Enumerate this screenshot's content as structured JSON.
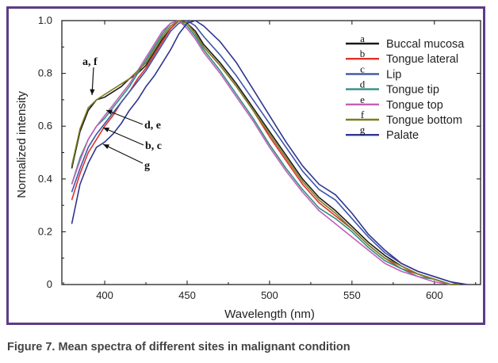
{
  "caption": "Figure 7. Mean spectra of different sites in malignant condition",
  "chart_data": {
    "type": "line",
    "xlabel": "Wavelength (nm)",
    "ylabel": "Normalized intensity",
    "xlim": [
      374,
      628
    ],
    "ylim": [
      0,
      1.0
    ],
    "x_ticks": [
      400,
      450,
      500,
      550,
      600
    ],
    "x_tick_labels": [
      "400",
      "450",
      "500",
      "550",
      "600"
    ],
    "y_ticks": [
      0,
      0.2,
      0.4,
      0.6,
      0.8,
      1.0
    ],
    "y_tick_labels": [
      "0",
      "0.2",
      "0.4",
      "0.6",
      "0.8",
      "1.0"
    ],
    "grid": false,
    "legend_position": "top-right",
    "series": [
      {
        "key": "a",
        "name": "Buccal mucosa",
        "color": "#1a1a1a",
        "points": [
          [
            380,
            0.44
          ],
          [
            385,
            0.58
          ],
          [
            390,
            0.66
          ],
          [
            395,
            0.7
          ],
          [
            400,
            0.71
          ],
          [
            405,
            0.73
          ],
          [
            410,
            0.75
          ],
          [
            415,
            0.78
          ],
          [
            420,
            0.8
          ],
          [
            425,
            0.83
          ],
          [
            430,
            0.88
          ],
          [
            435,
            0.93
          ],
          [
            440,
            0.97
          ],
          [
            445,
            1.0
          ],
          [
            450,
            0.99
          ],
          [
            455,
            0.96
          ],
          [
            460,
            0.91
          ],
          [
            470,
            0.84
          ],
          [
            480,
            0.76
          ],
          [
            490,
            0.67
          ],
          [
            500,
            0.58
          ],
          [
            510,
            0.49
          ],
          [
            520,
            0.4
          ],
          [
            530,
            0.33
          ],
          [
            540,
            0.28
          ],
          [
            550,
            0.22
          ],
          [
            560,
            0.16
          ],
          [
            570,
            0.11
          ],
          [
            580,
            0.07
          ],
          [
            590,
            0.04
          ],
          [
            600,
            0.02
          ],
          [
            610,
            0.0
          ],
          [
            615,
            0.0
          ]
        ]
      },
      {
        "key": "b",
        "name": "Tongue lateral",
        "color": "#e0302a",
        "points": [
          [
            380,
            0.32
          ],
          [
            385,
            0.42
          ],
          [
            390,
            0.5
          ],
          [
            395,
            0.55
          ],
          [
            400,
            0.6
          ],
          [
            405,
            0.64
          ],
          [
            410,
            0.69
          ],
          [
            415,
            0.73
          ],
          [
            420,
            0.78
          ],
          [
            425,
            0.82
          ],
          [
            430,
            0.87
          ],
          [
            435,
            0.92
          ],
          [
            440,
            0.97
          ],
          [
            445,
            1.0
          ],
          [
            450,
            0.99
          ],
          [
            455,
            0.95
          ],
          [
            460,
            0.9
          ],
          [
            470,
            0.83
          ],
          [
            480,
            0.75
          ],
          [
            490,
            0.66
          ],
          [
            500,
            0.56
          ],
          [
            510,
            0.47
          ],
          [
            520,
            0.38
          ],
          [
            530,
            0.31
          ],
          [
            540,
            0.26
          ],
          [
            550,
            0.21
          ],
          [
            560,
            0.15
          ],
          [
            570,
            0.1
          ],
          [
            580,
            0.06
          ],
          [
            590,
            0.04
          ],
          [
            600,
            0.02
          ],
          [
            610,
            0.0
          ],
          [
            615,
            0.0
          ]
        ]
      },
      {
        "key": "c",
        "name": "Lip",
        "color": "#3d55a8",
        "points": [
          [
            380,
            0.35
          ],
          [
            385,
            0.44
          ],
          [
            390,
            0.52
          ],
          [
            395,
            0.57
          ],
          [
            400,
            0.61
          ],
          [
            405,
            0.65
          ],
          [
            410,
            0.69
          ],
          [
            415,
            0.73
          ],
          [
            420,
            0.77
          ],
          [
            425,
            0.81
          ],
          [
            430,
            0.86
          ],
          [
            435,
            0.91
          ],
          [
            440,
            0.96
          ],
          [
            445,
            0.99
          ],
          [
            450,
            1.0
          ],
          [
            455,
            0.98
          ],
          [
            460,
            0.94
          ],
          [
            470,
            0.87
          ],
          [
            480,
            0.79
          ],
          [
            490,
            0.7
          ],
          [
            500,
            0.61
          ],
          [
            510,
            0.52
          ],
          [
            520,
            0.43
          ],
          [
            530,
            0.36
          ],
          [
            540,
            0.32
          ],
          [
            550,
            0.25
          ],
          [
            560,
            0.18
          ],
          [
            570,
            0.12
          ],
          [
            580,
            0.08
          ],
          [
            590,
            0.05
          ],
          [
            600,
            0.03
          ],
          [
            610,
            0.01
          ],
          [
            615,
            0.0
          ]
        ]
      },
      {
        "key": "d",
        "name": "Tongue tip",
        "color": "#2f8f85",
        "points": [
          [
            380,
            0.38
          ],
          [
            385,
            0.48
          ],
          [
            390,
            0.55
          ],
          [
            395,
            0.6
          ],
          [
            400,
            0.63
          ],
          [
            405,
            0.67
          ],
          [
            410,
            0.71
          ],
          [
            415,
            0.75
          ],
          [
            420,
            0.8
          ],
          [
            425,
            0.85
          ],
          [
            430,
            0.9
          ],
          [
            435,
            0.95
          ],
          [
            440,
            0.99
          ],
          [
            445,
            1.0
          ],
          [
            450,
            0.98
          ],
          [
            455,
            0.94
          ],
          [
            460,
            0.89
          ],
          [
            470,
            0.81
          ],
          [
            480,
            0.72
          ],
          [
            490,
            0.63
          ],
          [
            500,
            0.53
          ],
          [
            510,
            0.44
          ],
          [
            520,
            0.36
          ],
          [
            530,
            0.29
          ],
          [
            540,
            0.25
          ],
          [
            550,
            0.2
          ],
          [
            560,
            0.14
          ],
          [
            570,
            0.09
          ],
          [
            580,
            0.06
          ],
          [
            590,
            0.03
          ],
          [
            600,
            0.02
          ],
          [
            610,
            0.0
          ],
          [
            615,
            0.0
          ]
        ]
      },
      {
        "key": "e",
        "name": "Tongue top",
        "color": "#c260b8",
        "points": [
          [
            380,
            0.38
          ],
          [
            385,
            0.47
          ],
          [
            390,
            0.55
          ],
          [
            395,
            0.6
          ],
          [
            400,
            0.64
          ],
          [
            405,
            0.68
          ],
          [
            410,
            0.72
          ],
          [
            415,
            0.76
          ],
          [
            420,
            0.81
          ],
          [
            425,
            0.86
          ],
          [
            430,
            0.91
          ],
          [
            435,
            0.96
          ],
          [
            440,
            0.99
          ],
          [
            445,
            1.0
          ],
          [
            450,
            0.97
          ],
          [
            455,
            0.93
          ],
          [
            460,
            0.88
          ],
          [
            470,
            0.8
          ],
          [
            480,
            0.71
          ],
          [
            490,
            0.62
          ],
          [
            500,
            0.52
          ],
          [
            510,
            0.43
          ],
          [
            520,
            0.35
          ],
          [
            530,
            0.28
          ],
          [
            540,
            0.23
          ],
          [
            550,
            0.18
          ],
          [
            560,
            0.13
          ],
          [
            570,
            0.08
          ],
          [
            580,
            0.05
          ],
          [
            590,
            0.03
          ],
          [
            600,
            0.01
          ],
          [
            610,
            0.0
          ],
          [
            615,
            0.0
          ]
        ]
      },
      {
        "key": "f",
        "name": "Tongue bottom",
        "color": "#7d7d1f",
        "points": [
          [
            380,
            0.45
          ],
          [
            385,
            0.59
          ],
          [
            390,
            0.67
          ],
          [
            395,
            0.7
          ],
          [
            400,
            0.72
          ],
          [
            405,
            0.74
          ],
          [
            410,
            0.76
          ],
          [
            415,
            0.78
          ],
          [
            420,
            0.81
          ],
          [
            425,
            0.84
          ],
          [
            430,
            0.89
          ],
          [
            435,
            0.94
          ],
          [
            440,
            0.98
          ],
          [
            445,
            1.0
          ],
          [
            450,
            0.99
          ],
          [
            455,
            0.95
          ],
          [
            460,
            0.9
          ],
          [
            470,
            0.83
          ],
          [
            480,
            0.75
          ],
          [
            490,
            0.66
          ],
          [
            500,
            0.57
          ],
          [
            510,
            0.48
          ],
          [
            520,
            0.39
          ],
          [
            530,
            0.32
          ],
          [
            540,
            0.27
          ],
          [
            550,
            0.21
          ],
          [
            560,
            0.15
          ],
          [
            570,
            0.1
          ],
          [
            580,
            0.07
          ],
          [
            590,
            0.04
          ],
          [
            600,
            0.02
          ],
          [
            610,
            0.0
          ],
          [
            615,
            0.0
          ]
        ]
      },
      {
        "key": "g",
        "name": "Palate",
        "color": "#2e3590",
        "points": [
          [
            380,
            0.23
          ],
          [
            385,
            0.38
          ],
          [
            390,
            0.46
          ],
          [
            395,
            0.52
          ],
          [
            400,
            0.54
          ],
          [
            405,
            0.57
          ],
          [
            410,
            0.61
          ],
          [
            415,
            0.66
          ],
          [
            420,
            0.7
          ],
          [
            425,
            0.75
          ],
          [
            430,
            0.79
          ],
          [
            435,
            0.84
          ],
          [
            440,
            0.89
          ],
          [
            445,
            0.95
          ],
          [
            450,
            0.99
          ],
          [
            455,
            1.0
          ],
          [
            460,
            0.98
          ],
          [
            470,
            0.92
          ],
          [
            480,
            0.84
          ],
          [
            490,
            0.74
          ],
          [
            500,
            0.64
          ],
          [
            510,
            0.54
          ],
          [
            520,
            0.45
          ],
          [
            530,
            0.38
          ],
          [
            540,
            0.34
          ],
          [
            550,
            0.27
          ],
          [
            560,
            0.19
          ],
          [
            570,
            0.13
          ],
          [
            580,
            0.08
          ],
          [
            590,
            0.05
          ],
          [
            600,
            0.03
          ],
          [
            610,
            0.01
          ],
          [
            620,
            0.0
          ]
        ]
      }
    ],
    "annotations": [
      {
        "label": "a, f",
        "target": [
          393,
          0.7
        ]
      },
      {
        "label": "d, e",
        "target": [
          402,
          0.67
        ]
      },
      {
        "label": "b, c",
        "target": [
          402,
          0.6
        ]
      },
      {
        "label": "g",
        "target": [
          403,
          0.53
        ]
      }
    ]
  }
}
